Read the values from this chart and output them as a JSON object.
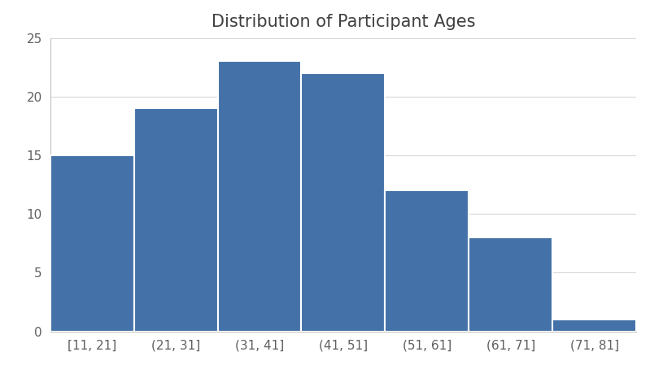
{
  "title": "Distribution of Participant Ages",
  "categories": [
    "[11, 21]",
    "(21, 31]",
    "(31, 41]",
    "(41, 51]",
    "(51, 61]",
    "(61, 71]",
    "(71, 81]"
  ],
  "values": [
    15,
    19,
    23,
    22,
    12,
    8,
    1
  ],
  "bar_color": "#4472a8",
  "bar_edge_color": "#ffffff",
  "ylim": [
    0,
    25
  ],
  "yticks": [
    0,
    5,
    10,
    15,
    20,
    25
  ],
  "title_fontsize": 15,
  "tick_fontsize": 11,
  "background_color": "#ffffff",
  "bar_width": 1.0
}
